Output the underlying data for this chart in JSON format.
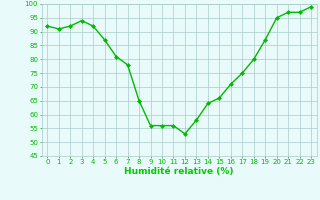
{
  "x": [
    0,
    1,
    2,
    3,
    4,
    5,
    6,
    7,
    8,
    9,
    10,
    11,
    12,
    13,
    14,
    15,
    16,
    17,
    18,
    19,
    20,
    21,
    22,
    23
  ],
  "y": [
    92,
    91,
    92,
    94,
    92,
    87,
    81,
    78,
    65,
    56,
    56,
    56,
    53,
    58,
    64,
    66,
    71,
    75,
    80,
    87,
    95,
    97,
    97,
    99
  ],
  "line_color": "#00bb00",
  "marker": "D",
  "marker_size": 2.0,
  "linewidth": 1.0,
  "xlabel": "Humidité relative (%)",
  "xlabel_color": "#00cc00",
  "ylim": [
    45,
    100
  ],
  "xlim": [
    -0.5,
    23.5
  ],
  "yticks": [
    45,
    50,
    55,
    60,
    65,
    70,
    75,
    80,
    85,
    90,
    95,
    100
  ],
  "xticks": [
    0,
    1,
    2,
    3,
    4,
    5,
    6,
    7,
    8,
    9,
    10,
    11,
    12,
    13,
    14,
    15,
    16,
    17,
    18,
    19,
    20,
    21,
    22,
    23
  ],
  "xtick_labels": [
    "0",
    "1",
    "2",
    "3",
    "4",
    "5",
    "6",
    "7",
    "8",
    "9",
    "10",
    "11",
    "12",
    "13",
    "14",
    "15",
    "16",
    "17",
    "18",
    "19",
    "20",
    "21",
    "22",
    "23"
  ],
  "background_color": "#e8fafa",
  "grid_color": "#aacccc",
  "tick_color": "#00bb00",
  "tick_fontsize": 5.0,
  "xlabel_fontsize": 6.5,
  "xlabel_fontweight": "bold"
}
